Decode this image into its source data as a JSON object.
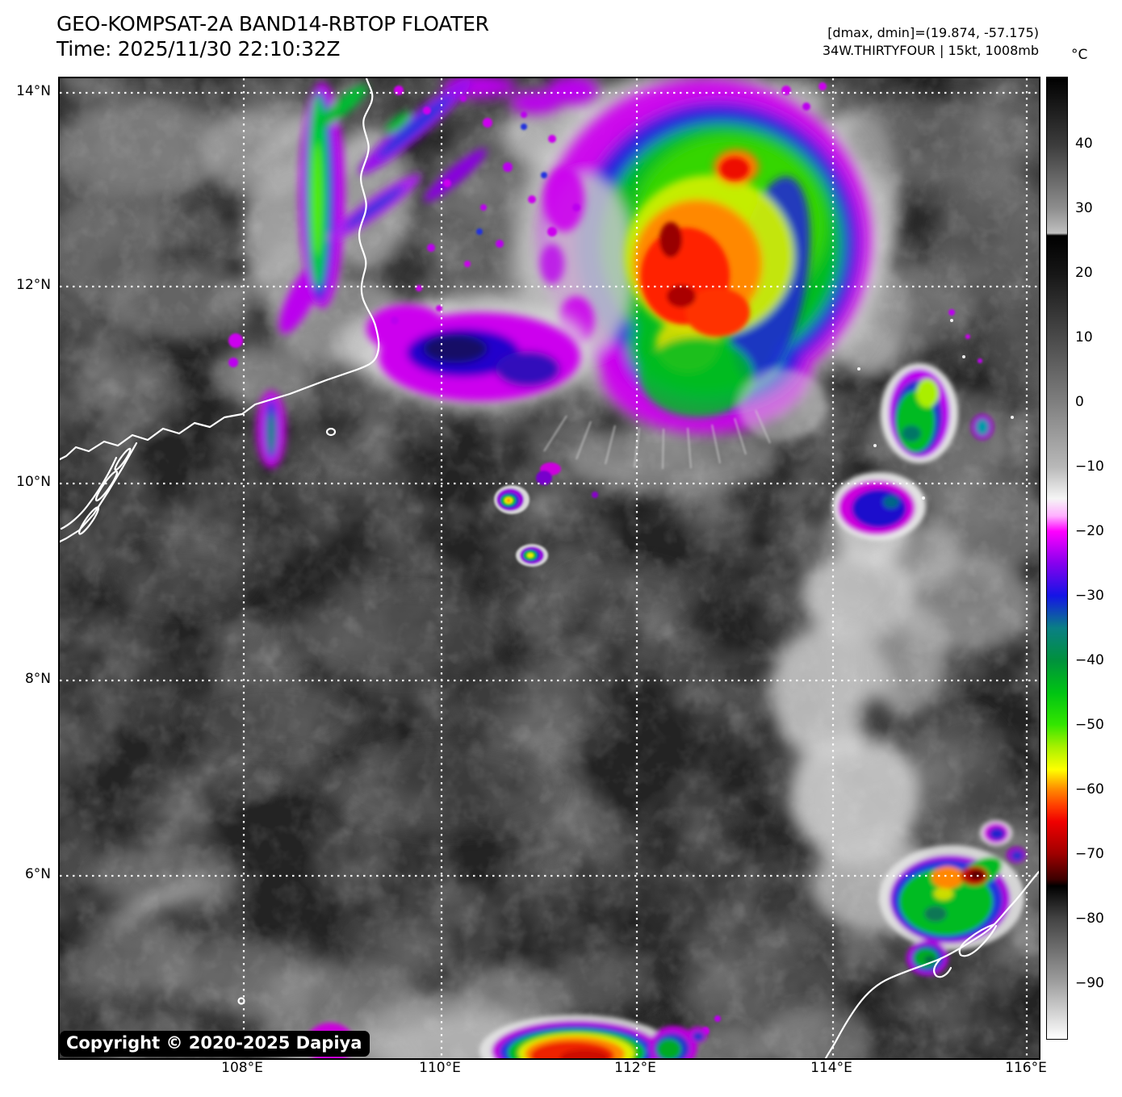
{
  "header": {
    "title": "GEO-KOMPSAT-2A BAND14-RBTOP FLOATER",
    "time_label": "Time: 2025/11/30 22:10:32Z",
    "range_label": "[dmax, dmin]=(19.874, -57.175)",
    "storm_label": "34W.THIRTYFOUR | 15kt, 1008mb"
  },
  "colorbar": {
    "unit_label": "°C",
    "tick_labels": [
      "40",
      "30",
      "20",
      "10",
      "0",
      "−10",
      "−20",
      "−30",
      "−40",
      "−50",
      "−60",
      "−70",
      "−80",
      "−90"
    ]
  },
  "map_axes": {
    "lat_tick_labels": [
      "14°N",
      "12°N",
      "10°N",
      "8°N",
      "6°N"
    ],
    "lon_tick_labels": [
      "108°E",
      "110°E",
      "112°E",
      "114°E",
      "116°E"
    ]
  },
  "watermark": {
    "copyright_label": "Copyright © 2020-2025 Dapiya"
  },
  "palette": {
    "fringe_magenta": "#cc00ee",
    "cold_blue": "#1a1ae6",
    "cold_green": "#00c41f",
    "cold_yellow": "#ffff00",
    "cold_orange": "#ff8c00",
    "cold_red": "#f00000",
    "cold_dark_red": "#a00000",
    "cloud_gray": "#c8c8c8",
    "ocean_dark": "#232323",
    "coastline_white": "#ffffff"
  }
}
